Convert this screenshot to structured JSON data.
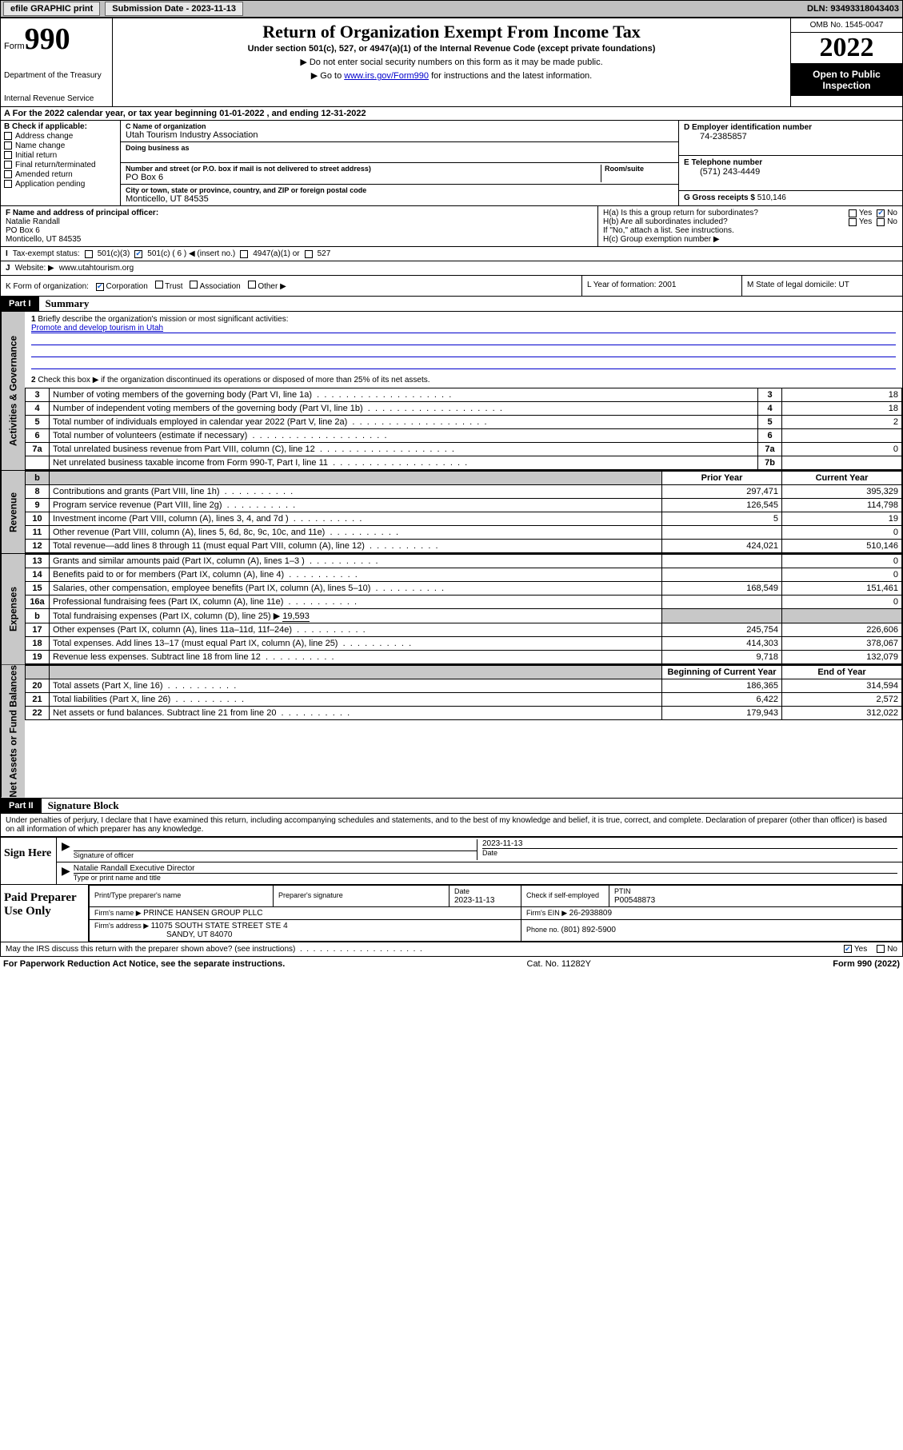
{
  "topbar": {
    "efile": "efile GRAPHIC print",
    "submission_label": "Submission Date - ",
    "submission_date": "2023-11-13",
    "dln_label": "DLN: ",
    "dln": "93493318043403"
  },
  "header": {
    "form_word": "Form",
    "form_number": "990",
    "dept": "Department of the Treasury",
    "irs": "Internal Revenue Service",
    "title": "Return of Organization Exempt From Income Tax",
    "subtitle": "Under section 501(c), 527, or 4947(a)(1) of the Internal Revenue Code (except private foundations)",
    "note1": "▶ Do not enter social security numbers on this form as it may be made public.",
    "note2_pre": "▶ Go to ",
    "note2_link": "www.irs.gov/Form990",
    "note2_post": " for instructions and the latest information.",
    "omb": "OMB No. 1545-0047",
    "year": "2022",
    "open": "Open to Public Inspection"
  },
  "period": {
    "text_pre": "For the 2022 calendar year, or tax year beginning ",
    "begin": "01-01-2022",
    "mid": "  , and ending ",
    "end": "12-31-2022"
  },
  "B": {
    "header": "Check if applicable:",
    "items": [
      "Address change",
      "Name change",
      "Initial return",
      "Final return/terminated",
      "Amended return",
      "Application pending"
    ]
  },
  "C": {
    "name_lbl": "C Name of organization",
    "name": "Utah Tourism Industry Association",
    "dba_lbl": "Doing business as",
    "dba": "",
    "street_lbl": "Number and street (or P.O. box if mail is not delivered to street address)",
    "room_lbl": "Room/suite",
    "street": "PO Box 6",
    "city_lbl": "City or town, state or province, country, and ZIP or foreign postal code",
    "city": "Monticello, UT  84535"
  },
  "D": {
    "lbl": "D Employer identification number",
    "val": "74-2385857"
  },
  "E": {
    "lbl": "E Telephone number",
    "val": "(571) 243-4449"
  },
  "G": {
    "lbl": "G Gross receipts $ ",
    "val": "510,146"
  },
  "F": {
    "lbl": "F  Name and address of principal officer:",
    "name": "Natalie Randall",
    "addr1": "PO Box 6",
    "addr2": "Monticello, UT  84535"
  },
  "H": {
    "a": "H(a)  Is this a group return for subordinates?",
    "b": "H(b)  Are all subordinates included?",
    "b_note": "If \"No,\" attach a list. See instructions.",
    "c": "H(c)  Group exemption number ▶",
    "yes": "Yes",
    "no": "No"
  },
  "I": {
    "lbl": "Tax-exempt status:",
    "o1": "501(c)(3)",
    "o2": "501(c) ( 6 ) ◀ (insert no.)",
    "o3": "4947(a)(1) or",
    "o4": "527"
  },
  "J": {
    "lbl": "Website: ▶ ",
    "val": "www.utahtourism.org"
  },
  "K": {
    "lbl": "Form of organization:",
    "o1": "Corporation",
    "o2": "Trust",
    "o3": "Association",
    "o4": "Other ▶"
  },
  "L": {
    "lbl": "L Year of formation: ",
    "val": "2001"
  },
  "M": {
    "lbl": "M State of legal domicile: ",
    "val": "UT"
  },
  "partI": {
    "num": "Part I",
    "title": "Summary"
  },
  "summary": {
    "q1": "Briefly describe the organization's mission or most significant activities:",
    "mission": "Promote and develop tourism in Utah",
    "q2": "Check this box ▶        if the organization discontinued its operations or disposed of more than 25% of its net assets.",
    "rows_gov": [
      {
        "n": "3",
        "t": "Number of voting members of the governing body (Part VI, line 1a)",
        "box": "3",
        "v": "18"
      },
      {
        "n": "4",
        "t": "Number of independent voting members of the governing body (Part VI, line 1b)",
        "box": "4",
        "v": "18"
      },
      {
        "n": "5",
        "t": "Total number of individuals employed in calendar year 2022 (Part V, line 2a)",
        "box": "5",
        "v": "2"
      },
      {
        "n": "6",
        "t": "Total number of volunteers (estimate if necessary)",
        "box": "6",
        "v": ""
      },
      {
        "n": "7a",
        "t": "Total unrelated business revenue from Part VIII, column (C), line 12",
        "box": "7a",
        "v": "0"
      },
      {
        "n": "",
        "t": "Net unrelated business taxable income from Form 990-T, Part I, line 11",
        "box": "7b",
        "v": ""
      }
    ],
    "th_prior": "Prior Year",
    "th_current": "Current Year",
    "rows_rev": [
      {
        "n": "8",
        "t": "Contributions and grants (Part VIII, line 1h)",
        "p": "297,471",
        "c": "395,329"
      },
      {
        "n": "9",
        "t": "Program service revenue (Part VIII, line 2g)",
        "p": "126,545",
        "c": "114,798"
      },
      {
        "n": "10",
        "t": "Investment income (Part VIII, column (A), lines 3, 4, and 7d )",
        "p": "5",
        "c": "19"
      },
      {
        "n": "11",
        "t": "Other revenue (Part VIII, column (A), lines 5, 6d, 8c, 9c, 10c, and 11e)",
        "p": "",
        "c": "0"
      },
      {
        "n": "12",
        "t": "Total revenue—add lines 8 through 11 (must equal Part VIII, column (A), line 12)",
        "p": "424,021",
        "c": "510,146"
      }
    ],
    "rows_exp": [
      {
        "n": "13",
        "t": "Grants and similar amounts paid (Part IX, column (A), lines 1–3 )",
        "p": "",
        "c": "0"
      },
      {
        "n": "14",
        "t": "Benefits paid to or for members (Part IX, column (A), line 4)",
        "p": "",
        "c": "0"
      },
      {
        "n": "15",
        "t": "Salaries, other compensation, employee benefits (Part IX, column (A), lines 5–10)",
        "p": "168,549",
        "c": "151,461"
      },
      {
        "n": "16a",
        "t": "Professional fundraising fees (Part IX, column (A), line 11e)",
        "p": "",
        "c": "0"
      }
    ],
    "row16b_n": "b",
    "row16b_t": "Total fundraising expenses (Part IX, column (D), line 25) ▶",
    "row16b_v": "19,593",
    "rows_exp2": [
      {
        "n": "17",
        "t": "Other expenses (Part IX, column (A), lines 11a–11d, 11f–24e)",
        "p": "245,754",
        "c": "226,606"
      },
      {
        "n": "18",
        "t": "Total expenses. Add lines 13–17 (must equal Part IX, column (A), line 25)",
        "p": "414,303",
        "c": "378,067"
      },
      {
        "n": "19",
        "t": "Revenue less expenses. Subtract line 18 from line 12",
        "p": "9,718",
        "c": "132,079"
      }
    ],
    "th_begin": "Beginning of Current Year",
    "th_end": "End of Year",
    "rows_net": [
      {
        "n": "20",
        "t": "Total assets (Part X, line 16)",
        "p": "186,365",
        "c": "314,594"
      },
      {
        "n": "21",
        "t": "Total liabilities (Part X, line 26)",
        "p": "6,422",
        "c": "2,572"
      },
      {
        "n": "22",
        "t": "Net assets or fund balances. Subtract line 21 from line 20",
        "p": "179,943",
        "c": "312,022"
      }
    ]
  },
  "sidelabels": {
    "gov": "Activities & Governance",
    "rev": "Revenue",
    "exp": "Expenses",
    "net": "Net Assets or Fund Balances"
  },
  "partII": {
    "num": "Part II",
    "title": "Signature Block"
  },
  "penalties": "Under penalties of perjury, I declare that I have examined this return, including accompanying schedules and statements, and to the best of my knowledge and belief, it is true, correct, and complete. Declaration of preparer (other than officer) is based on all information of which preparer has any knowledge.",
  "sign": {
    "here": "Sign Here",
    "sig_lbl": "Signature of officer",
    "date_lbl": "Date",
    "date": "2023-11-13",
    "name": "Natalie Randall  Executive Director",
    "name_lbl": "Type or print name and title"
  },
  "prep": {
    "title": "Paid Preparer Use Only",
    "h1": "Print/Type preparer's name",
    "h2": "Preparer's signature",
    "h3": "Date",
    "h3v": "2023-11-13",
    "h4": "Check        if self-employed",
    "h5": "PTIN",
    "h5v": "P00548873",
    "firm_lbl": "Firm's name      ▶ ",
    "firm": "PRINCE HANSEN GROUP PLLC",
    "ein_lbl": "Firm's EIN ▶ ",
    "ein": "26-2938809",
    "addr_lbl": "Firm's address ▶ ",
    "addr1": "11075 SOUTH STATE STREET STE 4",
    "addr2": "SANDY, UT  84070",
    "phone_lbl": "Phone no. ",
    "phone": "(801) 892-5900"
  },
  "discuss": {
    "q": "May the IRS discuss this return with the preparer shown above? (see instructions)",
    "yes": "Yes",
    "no": "No"
  },
  "footer": {
    "l": "For Paperwork Reduction Act Notice, see the separate instructions.",
    "c": "Cat. No. 11282Y",
    "r": "Form 990 (2022)"
  }
}
